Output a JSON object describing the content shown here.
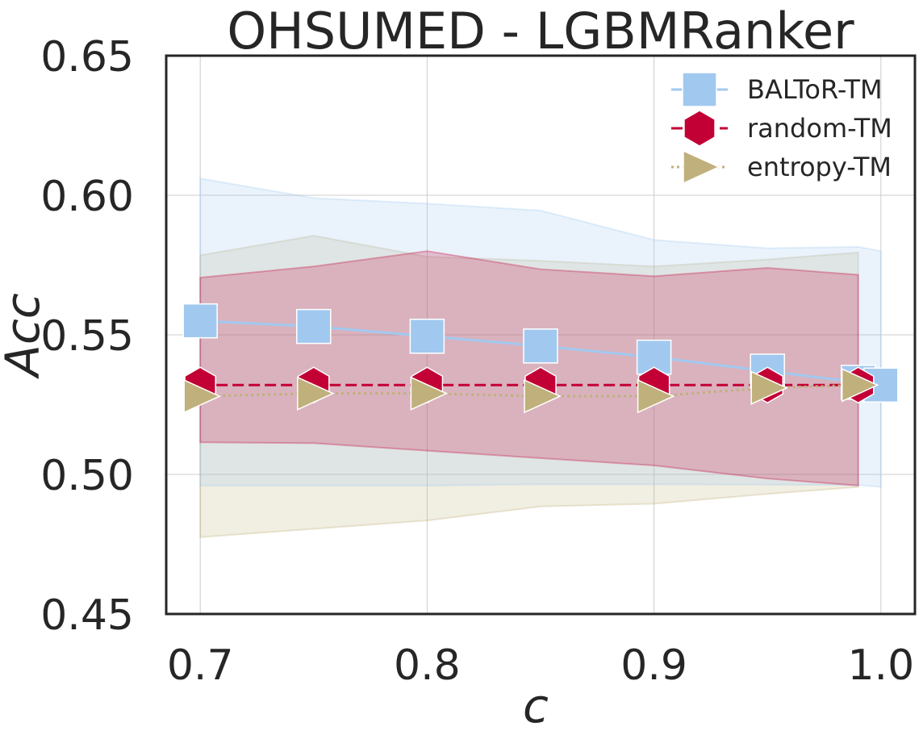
{
  "chart_data": {
    "type": "line",
    "title": "OHSUMED - LGBMRanker",
    "xlabel": "c",
    "ylabel": "Acc",
    "xlim": [
      0.685,
      1.015
    ],
    "ylim": [
      0.45,
      0.65
    ],
    "xticks": [
      0.7,
      0.8,
      0.9,
      1.0
    ],
    "xtick_labels": [
      "0.7",
      "0.8",
      "0.9",
      "1.0"
    ],
    "yticks": [
      0.45,
      0.5,
      0.55,
      0.6,
      0.65
    ],
    "ytick_labels": [
      "0.45",
      "0.50",
      "0.55",
      "0.60",
      "0.65"
    ],
    "grid": true,
    "legend_position": "top-right",
    "series": [
      {
        "name": "BALToR-TM",
        "color": "#a1c9f0",
        "marker": "square",
        "line_style": "solid",
        "x": [
          0.7,
          0.75,
          0.8,
          0.85,
          0.9,
          0.95,
          0.99,
          1.0
        ],
        "y": [
          0.555,
          0.553,
          0.5495,
          0.546,
          0.542,
          0.537,
          0.533,
          0.532
        ],
        "upper": [
          0.606,
          0.599,
          0.597,
          0.5945,
          0.584,
          0.581,
          0.5815,
          0.58
        ],
        "lower": [
          0.496,
          0.496,
          0.496,
          0.4965,
          0.4965,
          0.4963,
          0.4962,
          0.4955
        ]
      },
      {
        "name": "random-TM",
        "color": "#c30035",
        "marker": "hexagon",
        "line_style": "dashed",
        "x": [
          0.7,
          0.75,
          0.8,
          0.85,
          0.9,
          0.95,
          0.99
        ],
        "y": [
          0.532,
          0.532,
          0.532,
          0.532,
          0.532,
          0.532,
          0.532
        ],
        "upper": [
          0.5705,
          0.5745,
          0.58,
          0.5735,
          0.571,
          0.574,
          0.5715
        ],
        "lower": [
          0.5115,
          0.5112,
          0.5085,
          0.5058,
          0.5032,
          0.4985,
          0.496
        ]
      },
      {
        "name": "entropy-TM",
        "color": "#c0b07b",
        "marker": "triangle-right",
        "line_style": "dotted",
        "x": [
          0.7,
          0.75,
          0.8,
          0.85,
          0.9,
          0.95,
          0.99
        ],
        "y": [
          0.528,
          0.529,
          0.529,
          0.528,
          0.528,
          0.531,
          0.532
        ],
        "upper": [
          0.5785,
          0.5855,
          0.578,
          0.5765,
          0.5745,
          0.577,
          0.5795
        ],
        "lower": [
          0.4775,
          0.4805,
          0.4835,
          0.4885,
          0.4895,
          0.493,
          0.4955
        ]
      }
    ]
  }
}
